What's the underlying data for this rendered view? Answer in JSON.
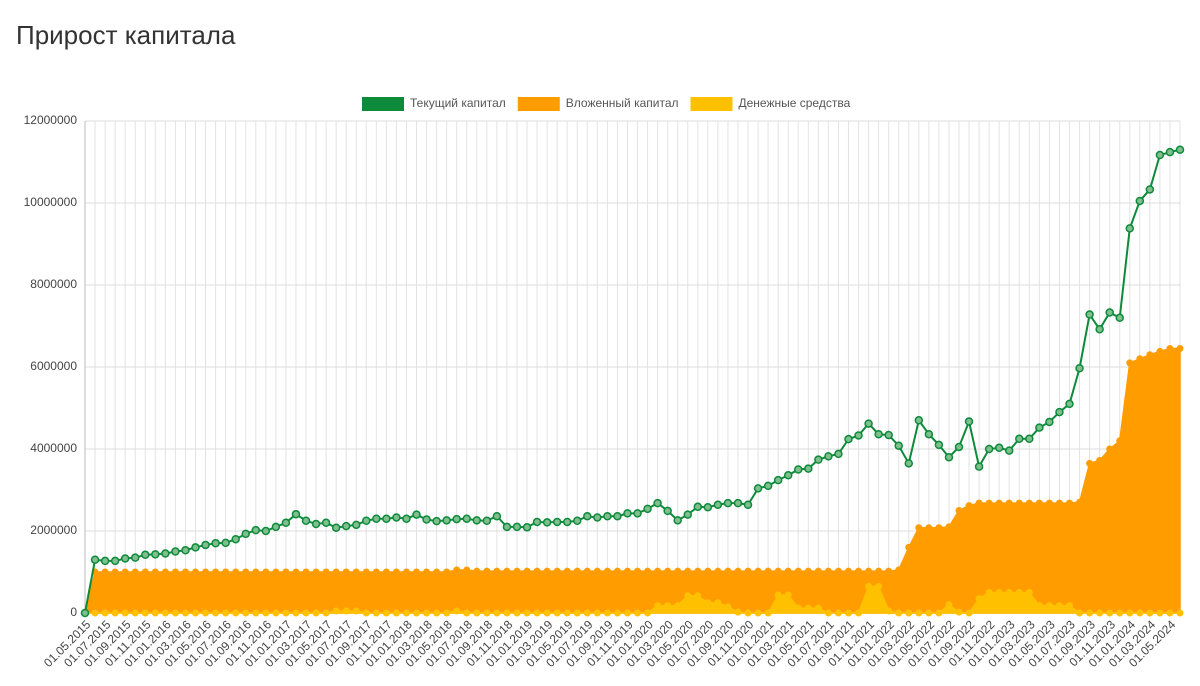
{
  "chart_data": {
    "type": "line",
    "title": "Прирост капитала",
    "categories": [
      "01.05.2015",
      null,
      "01.07.2015",
      null,
      "01.09.2015",
      null,
      "01.11.2015",
      null,
      "01.01.2016",
      null,
      "01.03.2016",
      null,
      "01.05.2016",
      null,
      "01.07.2016",
      null,
      "01.09.2016",
      null,
      "01.11.2016",
      null,
      "01.01.2017",
      null,
      "01.03.2017",
      null,
      "01.05.2017",
      null,
      "01.07.2017",
      null,
      "01.09.2017",
      null,
      "01.11.2017",
      null,
      "01.01.2018",
      null,
      "01.03.2018",
      null,
      "01.05.2018",
      null,
      "01.07.2018",
      null,
      "01.09.2018",
      null,
      "01.11.2018",
      null,
      "01.01.2019",
      null,
      "01.03.2019",
      null,
      "01.05.2019",
      null,
      "01.07.2019",
      null,
      "01.09.2019",
      null,
      "01.11.2019",
      null,
      "01.01.2020",
      null,
      "01.03.2020",
      null,
      "01.05.2020",
      null,
      "01.07.2020",
      null,
      "01.09.2020",
      null,
      "01.11.2020",
      null,
      "01.01.2021",
      null,
      "01.03.2021",
      null,
      "01.05.2021",
      null,
      "01.07.2021",
      null,
      "01.09.2021",
      null,
      "01.11.2021",
      null,
      "01.01.2022",
      null,
      "01.03.2022",
      null,
      "01.05.2022",
      null,
      "01.07.2022",
      null,
      "01.09.2022",
      null,
      "01.11.2022",
      null,
      "01.01.2023",
      null,
      "01.03.2023",
      null,
      "01.05.2023",
      null,
      "01.07.2023",
      null,
      "01.09.2023",
      null,
      "01.11.2023",
      null,
      "01.01.2024",
      null,
      "01.03.2024",
      null,
      "01.05.2024",
      null
    ],
    "series": [
      {
        "name": "Вложенный капитал",
        "color": "#ff9c00",
        "area": true,
        "values": [
          0,
          1000000,
          1000000,
          1000000,
          1000000,
          1000000,
          1000000,
          1000000,
          1000000,
          1000000,
          1000000,
          1000000,
          1000000,
          1000000,
          1000000,
          1000000,
          1000000,
          1000000,
          1000000,
          1000000,
          1000000,
          1000000,
          1000000,
          1000000,
          1000000,
          1000000,
          1000000,
          1000000,
          1000000,
          1000000,
          1000000,
          1000000,
          1000000,
          1000000,
          1000000,
          1000000,
          1000000,
          1050000,
          1050000,
          1020000,
          1020000,
          1020000,
          1020000,
          1020000,
          1020000,
          1020000,
          1020000,
          1020000,
          1020000,
          1020000,
          1020000,
          1020000,
          1020000,
          1020000,
          1020000,
          1020000,
          1020000,
          1020000,
          1020000,
          1020000,
          1020000,
          1020000,
          1020000,
          1020000,
          1020000,
          1020000,
          1020000,
          1020000,
          1020000,
          1020000,
          1020000,
          1020000,
          1020000,
          1020000,
          1020000,
          1020000,
          1020000,
          1020000,
          1020000,
          1020000,
          1020000,
          1050000,
          1600000,
          2080000,
          2080000,
          2080000,
          2100000,
          2500000,
          2620000,
          2680000,
          2680000,
          2680000,
          2680000,
          2680000,
          2680000,
          2680000,
          2680000,
          2680000,
          2680000,
          2700000,
          3650000,
          3720000,
          4000000,
          4200000,
          6100000,
          6200000,
          6300000,
          6380000,
          6450000,
          6450000
        ]
      },
      {
        "name": "Денежные средства",
        "color": "#ffc000",
        "area": true,
        "values": [
          0,
          0,
          0,
          0,
          0,
          0,
          0,
          0,
          0,
          0,
          0,
          0,
          0,
          0,
          0,
          0,
          0,
          0,
          0,
          0,
          0,
          0,
          0,
          0,
          0,
          50000,
          50000,
          50000,
          0,
          0,
          0,
          0,
          0,
          0,
          0,
          0,
          0,
          50000,
          0,
          0,
          0,
          0,
          0,
          0,
          0,
          0,
          0,
          0,
          0,
          0,
          0,
          0,
          0,
          0,
          0,
          0,
          0,
          180000,
          180000,
          180000,
          420000,
          420000,
          250000,
          250000,
          150000,
          20000,
          0,
          0,
          0,
          440000,
          440000,
          120000,
          120000,
          120000,
          0,
          0,
          0,
          0,
          650000,
          650000,
          50000,
          0,
          0,
          0,
          0,
          0,
          200000,
          20000,
          0,
          350000,
          500000,
          500000,
          500000,
          500000,
          500000,
          180000,
          180000,
          180000,
          180000,
          0,
          0,
          0,
          0,
          0,
          0,
          0,
          0,
          0,
          0,
          0
        ]
      },
      {
        "name": "Текущий капитал",
        "color": "#0d8a3a",
        "values": [
          0,
          1300000,
          1270000,
          1270000,
          1330000,
          1350000,
          1420000,
          1430000,
          1450000,
          1500000,
          1530000,
          1600000,
          1660000,
          1700000,
          1710000,
          1800000,
          1930000,
          2020000,
          2000000,
          2100000,
          2200000,
          2410000,
          2250000,
          2170000,
          2200000,
          2080000,
          2120000,
          2150000,
          2250000,
          2300000,
          2300000,
          2330000,
          2300000,
          2400000,
          2280000,
          2240000,
          2260000,
          2290000,
          2300000,
          2260000,
          2250000,
          2360000,
          2100000,
          2100000,
          2090000,
          2220000,
          2210000,
          2220000,
          2220000,
          2250000,
          2360000,
          2330000,
          2360000,
          2360000,
          2430000,
          2430000,
          2540000,
          2680000,
          2490000,
          2260000,
          2400000,
          2590000,
          2580000,
          2640000,
          2680000,
          2680000,
          2640000,
          3040000,
          3100000,
          3240000,
          3360000,
          3500000,
          3520000,
          3740000,
          3820000,
          3880000,
          4240000,
          4330000,
          4620000,
          4360000,
          4340000,
          4080000,
          3650000,
          4700000,
          4360000,
          4100000,
          3800000,
          4050000,
          4670000,
          3570000,
          4000000,
          4030000,
          3960000,
          4250000,
          4250000,
          4520000,
          4660000,
          4900000,
          5100000,
          5970000,
          7280000,
          6920000,
          7330000,
          7200000,
          9380000,
          10050000,
          10330000,
          11170000,
          11240000,
          11300000
        ]
      }
    ],
    "legend_order": [
      2,
      0,
      1
    ],
    "ylim": [
      0,
      12000000
    ],
    "yticks": [
      0,
      2000000,
      4000000,
      6000000,
      8000000,
      10000000,
      12000000
    ],
    "grid": true
  }
}
